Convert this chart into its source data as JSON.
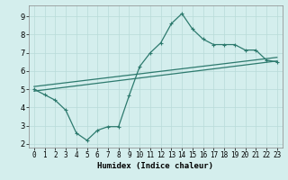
{
  "xlabel": "Humidex (Indice chaleur)",
  "ylabel": "",
  "bg_color": "#d4eeed",
  "line_color": "#2d7a6e",
  "xlim": [
    -0.5,
    23.5
  ],
  "ylim": [
    1.8,
    9.6
  ],
  "xticks": [
    0,
    1,
    2,
    3,
    4,
    5,
    6,
    7,
    8,
    9,
    10,
    11,
    12,
    13,
    14,
    15,
    16,
    17,
    18,
    19,
    20,
    21,
    22,
    23
  ],
  "yticks": [
    2,
    3,
    4,
    5,
    6,
    7,
    8,
    9
  ],
  "curve1_x": [
    0,
    1,
    2,
    3,
    4,
    5,
    6,
    7,
    8,
    9,
    10,
    11,
    12,
    13,
    14,
    15,
    16,
    17,
    18,
    19,
    20,
    21,
    22,
    23
  ],
  "curve1_y": [
    5.0,
    4.7,
    4.4,
    3.85,
    2.6,
    2.2,
    2.75,
    2.95,
    2.95,
    4.65,
    6.25,
    7.0,
    7.55,
    8.6,
    9.15,
    8.3,
    7.75,
    7.45,
    7.45,
    7.45,
    7.15,
    7.15,
    6.6,
    6.5
  ],
  "line2_x": [
    0,
    23
  ],
  "line2_y": [
    4.9,
    6.55
  ],
  "line3_x": [
    0,
    23
  ],
  "line3_y": [
    5.15,
    6.75
  ],
  "grid_color": "#b8dbd8",
  "grid_lw": 0.5,
  "line_lw": 0.9,
  "marker_size": 3.5,
  "tick_fontsize": 5.5,
  "xlabel_fontsize": 6.5
}
